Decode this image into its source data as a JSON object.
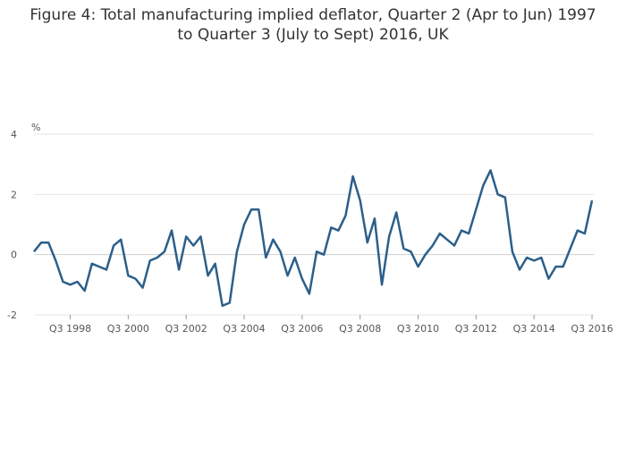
{
  "title_line1": "Figure 4: Total manufacturing implied deflator, Quarter 2 (Apr to Jun) 1997",
  "title_line2": "to Quarter 3 (July to Sept) 2016, UK",
  "chart_data": {
    "type": "line",
    "title": "Figure 4: Total manufacturing implied deflator, Quarter 2 (Apr to Jun) 1997 to Quarter 3 (July to Sept) 2016, UK",
    "ylabel": "%",
    "xlabel": "",
    "ylim": [
      -2,
      4
    ],
    "yticks": [
      -2,
      0,
      2,
      4
    ],
    "xtick_labels": [
      "Q3 1998",
      "Q3 2000",
      "Q3 2002",
      "Q3 2004",
      "Q3 2006",
      "Q3 2008",
      "Q3 2010",
      "Q3 2012",
      "Q3 2014",
      "Q3 2016"
    ],
    "grid": true,
    "line_color": "#2c5f8a",
    "x": [
      "Q2 1997",
      "Q3 1997",
      "Q4 1997",
      "Q1 1998",
      "Q2 1998",
      "Q3 1998",
      "Q4 1998",
      "Q1 1999",
      "Q2 1999",
      "Q3 1999",
      "Q4 1999",
      "Q1 2000",
      "Q2 2000",
      "Q3 2000",
      "Q4 2000",
      "Q1 2001",
      "Q2 2001",
      "Q3 2001",
      "Q4 2001",
      "Q1 2002",
      "Q2 2002",
      "Q3 2002",
      "Q4 2002",
      "Q1 2003",
      "Q2 2003",
      "Q3 2003",
      "Q4 2003",
      "Q1 2004",
      "Q2 2004",
      "Q3 2004",
      "Q4 2004",
      "Q1 2005",
      "Q2 2005",
      "Q3 2005",
      "Q4 2005",
      "Q1 2006",
      "Q2 2006",
      "Q3 2006",
      "Q4 2006",
      "Q1 2007",
      "Q2 2007",
      "Q3 2007",
      "Q4 2007",
      "Q1 2008",
      "Q2 2008",
      "Q3 2008",
      "Q4 2008",
      "Q1 2009",
      "Q2 2009",
      "Q3 2009",
      "Q4 2009",
      "Q1 2010",
      "Q2 2010",
      "Q3 2010",
      "Q4 2010",
      "Q1 2011",
      "Q2 2011",
      "Q3 2011",
      "Q4 2011",
      "Q1 2012",
      "Q2 2012",
      "Q3 2012",
      "Q4 2012",
      "Q1 2013",
      "Q2 2013",
      "Q3 2013",
      "Q4 2013",
      "Q1 2014",
      "Q2 2014",
      "Q3 2014",
      "Q4 2014",
      "Q1 2015",
      "Q2 2015",
      "Q3 2015",
      "Q4 2015",
      "Q1 2016",
      "Q2 2016",
      "Q3 2016"
    ],
    "series": [
      {
        "values": [
          0.1,
          0.4,
          0.4,
          -0.2,
          -0.9,
          -1.0,
          -0.9,
          -1.2,
          -0.3,
          -0.4,
          -0.5,
          0.3,
          0.5,
          -0.7,
          -0.8,
          -1.1,
          -0.2,
          -0.1,
          0.1,
          0.8,
          -0.5,
          0.6,
          0.3,
          0.6,
          -0.7,
          -0.3,
          -1.7,
          -1.6,
          0.1,
          1.0,
          1.5,
          1.5,
          -0.1,
          0.5,
          0.1,
          -0.7,
          -0.1,
          -0.8,
          -1.3,
          0.1,
          0.0,
          0.9,
          0.8,
          1.3,
          2.6,
          1.8,
          0.4,
          1.2,
          -1.0,
          0.6,
          1.4,
          0.2,
          0.1,
          -0.4,
          0.0,
          0.3,
          0.7,
          0.5,
          0.3,
          0.8,
          0.7,
          1.5,
          2.3,
          2.8,
          2.0,
          1.9,
          0.1,
          -0.5,
          -0.1,
          -0.2,
          -0.1,
          -0.8,
          -0.4,
          -0.4,
          0.2,
          0.8,
          0.7,
          1.8
        ]
      }
    ]
  }
}
